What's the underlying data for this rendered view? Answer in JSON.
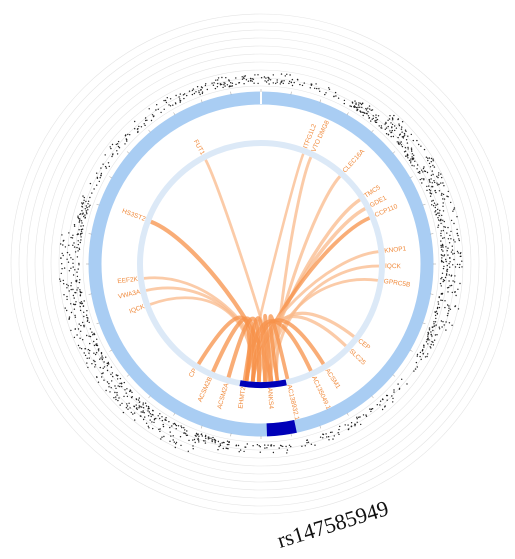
{
  "figure": {
    "caption": "rs147585949",
    "colors": {
      "outer_ring": "#a9cdf3",
      "inner_ring": "#dce9f7",
      "locus_block": "#0000b8",
      "link": "#f7924a",
      "link_light": "#f9b98b",
      "gene_label": "#f08a3c",
      "points": "#222222",
      "guide_circles": "#e4e4e4"
    },
    "genes": [
      {
        "name": "FUT1",
        "angle": -28,
        "weight": 0.55
      },
      {
        "name": "HS3ST2",
        "angle": -69,
        "weight": 1.0
      },
      {
        "name": "EEF2K",
        "angle": -97,
        "weight": 0.55
      },
      {
        "name": "VWA3A",
        "angle": -103,
        "weight": 0.6
      },
      {
        "name": "IQCK",
        "angle": -110,
        "weight": 0.55
      },
      {
        "name": "ITFG1L2",
        "angle": 21,
        "weight": 0.5
      },
      {
        "name": "VTO DMG8",
        "angle": 25,
        "weight": 0.6
      },
      {
        "name": "CLEC16A",
        "angle": 42,
        "weight": 0.65
      },
      {
        "name": "TMC5",
        "angle": 57,
        "weight": 0.75
      },
      {
        "name": "GDE1",
        "angle": 62,
        "weight": 0.8
      },
      {
        "name": "CCP110",
        "angle": 67,
        "weight": 0.85
      },
      {
        "name": "KNOP1",
        "angle": 84,
        "weight": 0.6
      },
      {
        "name": "IQCK",
        "angle": 91,
        "weight": 0.6
      },
      {
        "name": "GPRC5B",
        "angle": 98,
        "weight": 0.55
      },
      {
        "name": "CEP",
        "angle": 128,
        "weight": 0.7
      },
      {
        "name": "SLC25",
        "angle": 134,
        "weight": 0.7
      },
      {
        "name": "ACSM1",
        "angle": 148,
        "weight": 0.9
      },
      {
        "name": "AC135049.1",
        "angle": 155,
        "weight": 0.9
      },
      {
        "name": "AC138932.1",
        "angle": 167,
        "weight": 0.85
      },
      {
        "name": "ANKS4",
        "angle": 176,
        "weight": 0.85
      },
      {
        "name": "EHMT2",
        "angle": 188,
        "weight": 0.9
      },
      {
        "name": "ACSM2A",
        "angle": 196,
        "weight": 0.95
      },
      {
        "name": "ACSM2B",
        "angle": 204,
        "weight": 0.95
      },
      {
        "name": "CP",
        "angle": 212,
        "weight": 0.9
      }
    ]
  }
}
